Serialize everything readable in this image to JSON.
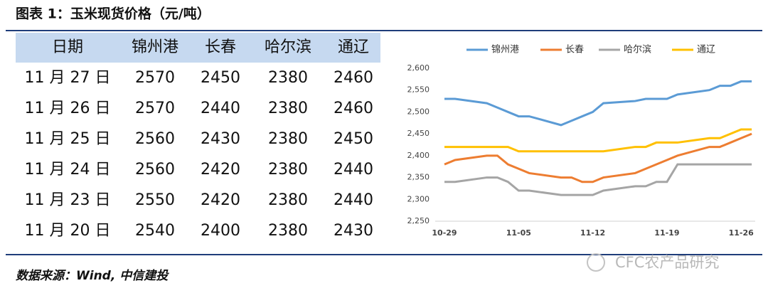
{
  "header": {
    "title": "图表 1：玉米现货价格（元/吨）"
  },
  "table": {
    "columns": [
      "日期",
      "锦州港",
      "长春",
      "哈尔滨",
      "通辽"
    ],
    "rows": [
      [
        "11 月 27 日",
        "2570",
        "2450",
        "2380",
        "2460"
      ],
      [
        "11 月 26 日",
        "2570",
        "2440",
        "2380",
        "2460"
      ],
      [
        "11 月 25 日",
        "2560",
        "2430",
        "2380",
        "2450"
      ],
      [
        "11 月 24 日",
        "2560",
        "2420",
        "2380",
        "2440"
      ],
      [
        "11 月 23 日",
        "2550",
        "2420",
        "2380",
        "2440"
      ],
      [
        "11 月 20 日",
        "2540",
        "2400",
        "2380",
        "2430"
      ]
    ]
  },
  "chart_data": {
    "type": "line",
    "x": [
      "10-29",
      "10-30",
      "11-02",
      "11-03",
      "11-04",
      "11-05",
      "11-06",
      "11-09",
      "11-10",
      "11-11",
      "11-12",
      "11-13",
      "11-16",
      "11-17",
      "11-18",
      "11-19",
      "11-20",
      "11-23",
      "11-24",
      "11-25",
      "11-26",
      "11-27"
    ],
    "series": [
      {
        "name": "锦州港",
        "color": "#5b9bd5",
        "values": [
          2530,
          2530,
          2520,
          2510,
          2500,
          2490,
          2490,
          2470,
          2480,
          2490,
          2500,
          2520,
          2525,
          2530,
          2530,
          2530,
          2540,
          2550,
          2560,
          2560,
          2570,
          2570
        ]
      },
      {
        "name": "长春",
        "color": "#ed7d31",
        "values": [
          2380,
          2390,
          2400,
          2400,
          2380,
          2370,
          2360,
          2350,
          2350,
          2340,
          2340,
          2350,
          2360,
          2370,
          2380,
          2390,
          2400,
          2420,
          2420,
          2430,
          2440,
          2450
        ]
      },
      {
        "name": "哈尔滨",
        "color": "#a5a5a5",
        "values": [
          2340,
          2340,
          2350,
          2350,
          2340,
          2320,
          2320,
          2310,
          2310,
          2310,
          2310,
          2320,
          2330,
          2330,
          2340,
          2340,
          2380,
          2380,
          2380,
          2380,
          2380,
          2380
        ]
      },
      {
        "name": "通辽",
        "color": "#ffc000",
        "values": [
          2420,
          2420,
          2420,
          2420,
          2420,
          2410,
          2410,
          2410,
          2410,
          2410,
          2410,
          2410,
          2420,
          2420,
          2430,
          2430,
          2430,
          2440,
          2440,
          2450,
          2460,
          2460
        ]
      }
    ],
    "ylim": [
      2250,
      2600
    ],
    "yticks": [
      {
        "value": 2250,
        "label": "2,250"
      },
      {
        "value": 2300,
        "label": "2,300"
      },
      {
        "value": 2350,
        "label": "2,350"
      },
      {
        "value": 2400,
        "label": "2,400"
      },
      {
        "value": 2450,
        "label": "2,450"
      },
      {
        "value": 2500,
        "label": "2,500"
      },
      {
        "value": 2550,
        "label": "2,550"
      },
      {
        "value": 2600,
        "label": "2,600"
      }
    ],
    "xticks": [
      "10-29",
      "11-05",
      "11-12",
      "11-19",
      "11-26"
    ],
    "legend": "top"
  },
  "source": "数据来源：Wind, 中信建投",
  "watermark": "CFC农产品研究"
}
